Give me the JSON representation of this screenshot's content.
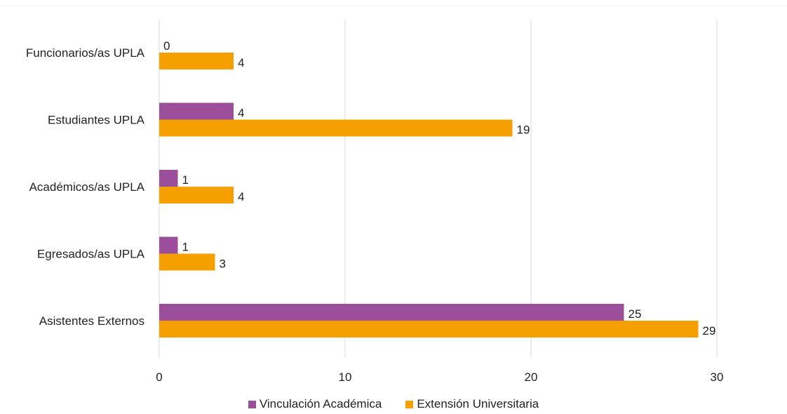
{
  "chart_data": {
    "type": "bar",
    "orientation": "horizontal",
    "categories": [
      "Funcionarios/as UPLA",
      "Estudiantes UPLA",
      "Académicos/as UPLA",
      "Egresados/as UPLA",
      "Asistentes Externos"
    ],
    "series": [
      {
        "name": "Vinculación Académica",
        "color": "#9b4f9b",
        "values": [
          0,
          4,
          1,
          1,
          25
        ]
      },
      {
        "name": "Extensión Universitaria",
        "color": "#f59f00",
        "values": [
          4,
          19,
          4,
          3,
          29
        ]
      }
    ],
    "xlim": [
      0,
      30
    ],
    "xticks": [
      0,
      10,
      20,
      30
    ],
    "grid": "vertical",
    "legend": "bottom",
    "title": "",
    "xlabel": "",
    "ylabel": ""
  }
}
